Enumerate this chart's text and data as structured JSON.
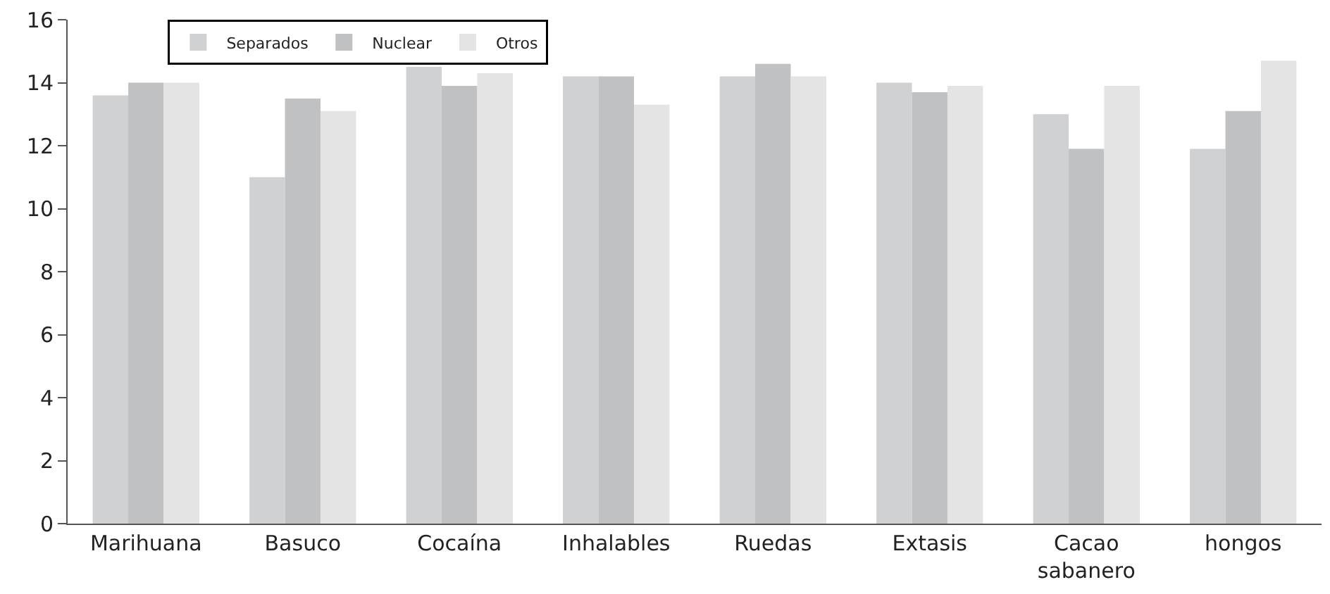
{
  "chart_data": {
    "type": "bar",
    "categories": [
      "Marihuana",
      "Basuco",
      "Cocaína",
      "Inhalables",
      "Ruedas",
      "Extasis",
      "Cacao sabanero",
      "hongos"
    ],
    "series": [
      {
        "name": "Separados",
        "color": "#d0d1d3",
        "values": [
          13.6,
          11.0,
          14.5,
          14.2,
          14.2,
          14.0,
          13.0,
          11.9
        ]
      },
      {
        "name": "Nuclear",
        "color": "#c0c1c3",
        "values": [
          14.0,
          13.5,
          13.9,
          14.2,
          14.6,
          13.7,
          11.9,
          13.1
        ]
      },
      {
        "name": "Otros",
        "color": "#e4e4e4",
        "values": [
          14.0,
          13.1,
          14.3,
          13.3,
          14.2,
          13.9,
          13.9,
          14.7
        ]
      }
    ],
    "ylim": [
      0,
      16
    ],
    "yticks": [
      0,
      2,
      4,
      6,
      8,
      10,
      12,
      14,
      16
    ],
    "legend": "top left"
  }
}
